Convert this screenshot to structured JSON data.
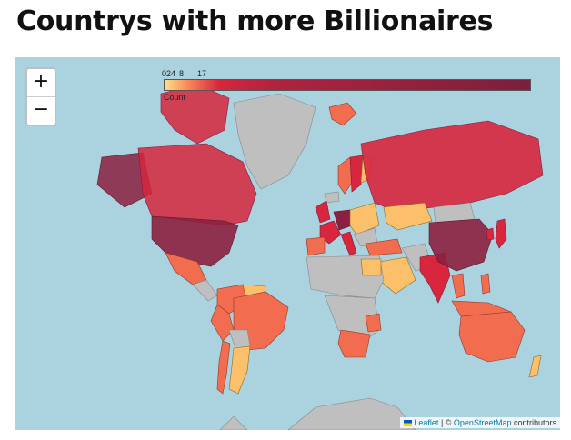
{
  "title": "Countrys with more Billionaires",
  "zoom": {
    "in_label": "+",
    "out_label": "−"
  },
  "legend": {
    "ticks": [
      "0",
      "2",
      "4",
      "8",
      "17"
    ],
    "label": "Count"
  },
  "attribution": {
    "leaflet": "Leaflet",
    "separator": " | © ",
    "osm": "OpenStreetMap",
    "contributors": " contributors"
  },
  "colors": {
    "ocean": "#aad3df",
    "no_data": "#bfbfbf",
    "light": "#fdc06a",
    "medium": "#f26c4f",
    "high": "#d7263d",
    "top": "#8b2040"
  }
}
